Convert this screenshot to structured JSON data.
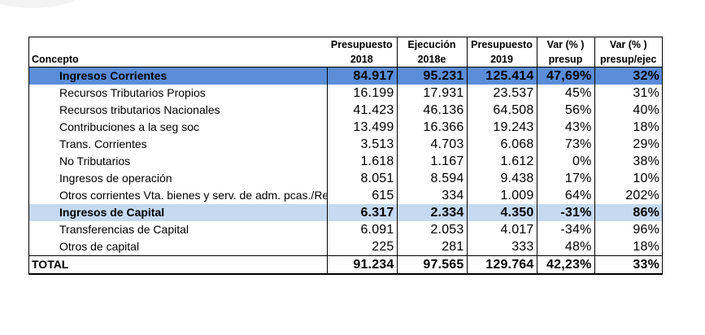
{
  "table": {
    "headers": {
      "row1": [
        "",
        "Presupuesto",
        "Ejecución",
        "Presupuesto",
        "Var (% )",
        "Var (% )"
      ],
      "row2": [
        "Concepto",
        "2018",
        "2018e",
        "2019",
        "presup",
        "presup/ejec"
      ]
    },
    "rows": [
      {
        "label": "Ingresos Corrientes",
        "values": [
          "84.917",
          "95.231",
          "125.414",
          "47,69%",
          "32%"
        ]
      },
      {
        "label": "Recursos Tributarios Propios",
        "values": [
          "16.199",
          "17.931",
          "23.537",
          "45%",
          "31%"
        ]
      },
      {
        "label": "Recursos tributarios Nacionales",
        "values": [
          "41.423",
          "46.136",
          "64.508",
          "56%",
          "40%"
        ]
      },
      {
        "label": "Contribuciones a la seg soc",
        "values": [
          "13.499",
          "16.366",
          "19.243",
          "43%",
          "18%"
        ]
      },
      {
        "label": "Trans. Corrientes",
        "values": [
          "3.513",
          "4.703",
          "6.068",
          "73%",
          "29%"
        ]
      },
      {
        "label": "No Tributarios",
        "values": [
          "1.618",
          "1.167",
          "1.612",
          "0%",
          "38%"
        ]
      },
      {
        "label": "Ingresos de operación",
        "values": [
          "8.051",
          "8.594",
          "9.438",
          "17%",
          "10%"
        ]
      },
      {
        "label": "Otros corrientes Vta. bienes y serv. de adm. pcas./Ren",
        "values": [
          "615",
          "334",
          "1.009",
          "64%",
          "202%"
        ]
      },
      {
        "label": "Ingresos de Capital",
        "values": [
          "6.317",
          "2.334",
          "4.350",
          "-31%",
          "86%"
        ]
      },
      {
        "label": "Transferencias de Capital",
        "values": [
          "6.091",
          "2.053",
          "4.017",
          "-34%",
          "96%"
        ]
      },
      {
        "label": "Otros de capital",
        "values": [
          "225",
          "281",
          "333",
          "48%",
          "18%"
        ]
      }
    ],
    "total": {
      "label": "TOTAL",
      "values": [
        "91.234",
        "97.565",
        "129.764",
        "42,23%",
        "33%"
      ]
    }
  }
}
